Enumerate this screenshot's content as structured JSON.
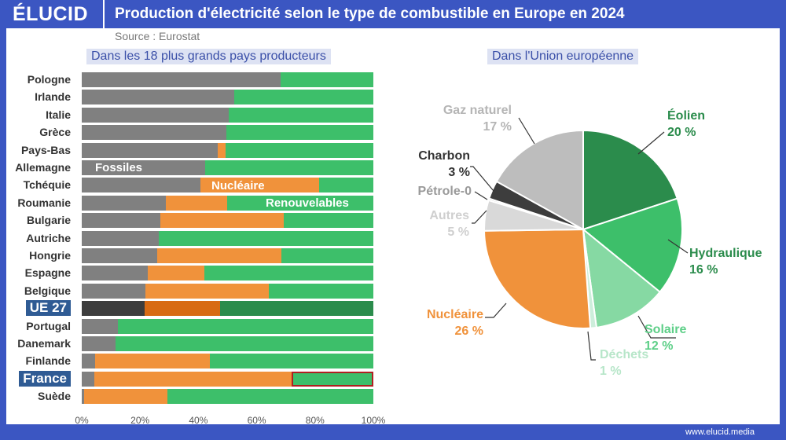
{
  "header": {
    "logo": "ÉLUCID",
    "title": "Production d'électricité selon le type de combustible en Europe en 2024",
    "source": "Source : Eurostat",
    "footer": "www.elucid.media"
  },
  "colors": {
    "frame": "#3b56c2",
    "fossiles": "#808080",
    "nucleaire": "#f0923b",
    "renouvelables": "#3dbf6a",
    "ue_fossiles": "#3d3d3d",
    "ue_nucleaire": "#d86b14",
    "ue_renouvelables": "#2b8c4c",
    "highlight_box": "#b02020"
  },
  "chart_data": [
    {
      "type": "bar",
      "orientation": "horizontal",
      "stacked": true,
      "title": "Dans les 18 plus grands pays producteurs",
      "categories": [
        "Pologne",
        "Irlande",
        "Italie",
        "Grèce",
        "Pays-Bas",
        "Allemagne",
        "Tchéquie",
        "Roumanie",
        "Bulgarie",
        "Autriche",
        "Hongrie",
        "Espagne",
        "Belgique",
        "UE 27",
        "Portugal",
        "Danemark",
        "Finlande",
        "France",
        "Suède"
      ],
      "highlighted": [
        "UE 27",
        "France"
      ],
      "series": [
        {
          "name": "Fossiles",
          "values": [
            68.2,
            52.3,
            50.4,
            49.6,
            46.6,
            42.3,
            40.7,
            28.8,
            27.0,
            26.4,
            25.9,
            22.6,
            21.8,
            21.6,
            12.4,
            11.6,
            4.6,
            4.3,
            0.8
          ]
        },
        {
          "name": "Nucléaire",
          "values": [
            0,
            0,
            0,
            0,
            2.7,
            0,
            40.7,
            21.1,
            42.3,
            0,
            42.6,
            19.4,
            42.4,
            25.8,
            0,
            0,
            39.3,
            67.7,
            28.6
          ]
        },
        {
          "name": "Renouvelables",
          "values": [
            31.8,
            47.7,
            49.6,
            50.4,
            50.7,
            57.7,
            18.6,
            50.1,
            30.7,
            73.6,
            31.5,
            58.0,
            35.8,
            52.6,
            87.6,
            88.4,
            56.1,
            28.0,
            70.6
          ]
        }
      ],
      "xlim": [
        0,
        100
      ],
      "xticks": [
        "0%",
        "20%",
        "40%",
        "60%",
        "80%",
        "100%"
      ]
    },
    {
      "type": "pie",
      "title": "Dans l'Union européenne",
      "slices": [
        {
          "label": "Éolien",
          "value": 20,
          "text": "20 %",
          "color": "#2b8c4c"
        },
        {
          "label": "Hydraulique",
          "value": 16,
          "text": "16 %",
          "color": "#3dbf6a"
        },
        {
          "label": "Solaire",
          "value": 12,
          "text": "12 %",
          "color": "#86d9a3"
        },
        {
          "label": "Déchets",
          "value": 1,
          "text": "1 %",
          "color": "#cdeedb"
        },
        {
          "label": "Nucléaire",
          "value": 26,
          "text": "26 %",
          "color": "#f0923b"
        },
        {
          "label": "Autres",
          "value": 5,
          "text": "5 %",
          "color": "#d9d9d9"
        },
        {
          "label": "Pétrole-0",
          "value": 0.3,
          "text": "",
          "color": "#bdbdbd"
        },
        {
          "label": "Charbon",
          "value": 3,
          "text": "3 %",
          "color": "#3d3d3d"
        },
        {
          "label": "Gaz naturel",
          "value": 17,
          "text": "17 %",
          "color": "#bdbdbd"
        }
      ]
    }
  ]
}
